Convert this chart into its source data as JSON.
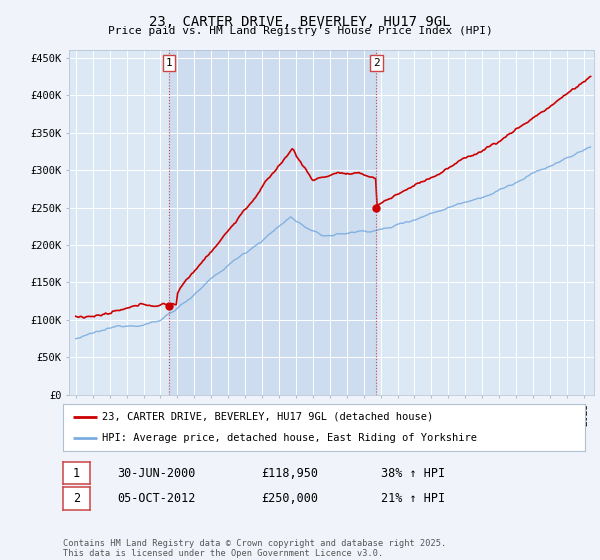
{
  "title": "23, CARTER DRIVE, BEVERLEY, HU17 9GL",
  "subtitle": "Price paid vs. HM Land Registry's House Price Index (HPI)",
  "ylim": [
    0,
    460000
  ],
  "yticks": [
    0,
    50000,
    100000,
    150000,
    200000,
    250000,
    300000,
    350000,
    400000,
    450000
  ],
  "ytick_labels": [
    "£0",
    "£50K",
    "£100K",
    "£150K",
    "£200K",
    "£250K",
    "£300K",
    "£350K",
    "£400K",
    "£450K"
  ],
  "xlim_start": 1994.6,
  "xlim_end": 2025.6,
  "background_color": "#f0f4fa",
  "plot_bg_color": "#dde8f5",
  "highlight_color": "#cddcee",
  "grid_color": "#ffffff",
  "red_line_color": "#cc0000",
  "blue_line_color": "#7aade0",
  "ann1_x": 2000.5,
  "ann1_y": 118950,
  "ann2_x": 2012.75,
  "ann2_y": 250000,
  "legend_line1": "23, CARTER DRIVE, BEVERLEY, HU17 9GL (detached house)",
  "legend_line2": "HPI: Average price, detached house, East Riding of Yorkshire",
  "footer": "Contains HM Land Registry data © Crown copyright and database right 2025.\nThis data is licensed under the Open Government Licence v3.0.",
  "table_row1": [
    "1",
    "30-JUN-2000",
    "£118,950",
    "38% ↑ HPI"
  ],
  "table_row2": [
    "2",
    "05-OCT-2012",
    "£250,000",
    "21% ↑ HPI"
  ]
}
